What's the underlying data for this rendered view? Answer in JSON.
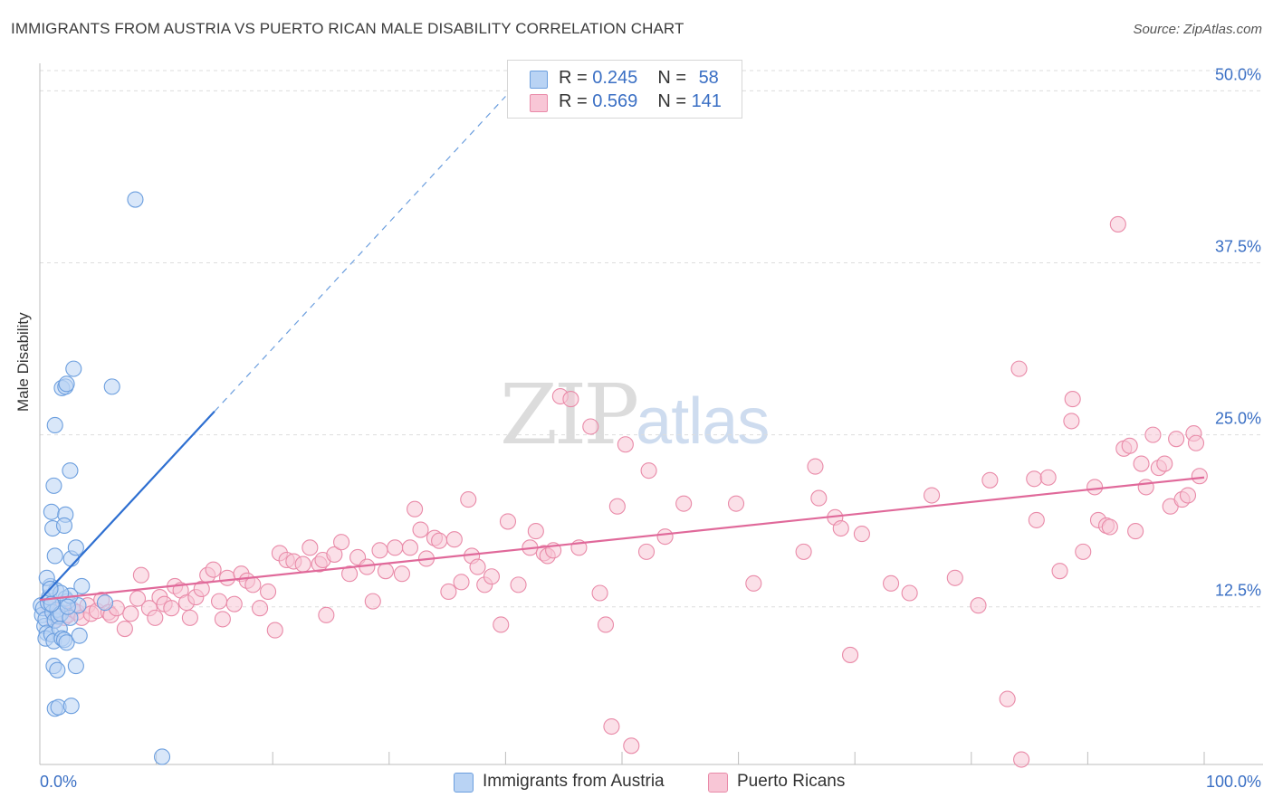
{
  "title": "IMMIGRANTS FROM AUSTRIA VS PUERTO RICAN MALE DISABILITY CORRELATION CHART",
  "source": "Source: ZipAtlas.com",
  "watermark": {
    "zip": "ZIP",
    "atlas": "atlas"
  },
  "colors": {
    "blue_fill": "#b9d3f4",
    "blue_stroke": "#6b9ede",
    "blue_line": "#2e6fd1",
    "pink_fill": "#f8c6d6",
    "pink_stroke": "#e98aa8",
    "pink_line": "#e0699a",
    "tick_label": "#3a6fc4",
    "grid": "#dddddd"
  },
  "legend_top": [
    {
      "r_label": "R = ",
      "r_value": "0.245",
      "n_label": "N = ",
      "n_value": "58",
      "color": "#b9d3f4"
    },
    {
      "r_label": "R = ",
      "r_value": "0.569",
      "n_label": "N = ",
      "n_value": "141",
      "color": "#f8c6d6"
    }
  ],
  "bottom_legend": [
    {
      "label": "Immigrants from Austria",
      "color": "#b9d3f4"
    },
    {
      "label": "Puerto Ricans",
      "color": "#f8c6d6"
    }
  ],
  "chart_data": {
    "type": "scatter",
    "xlabel": "",
    "ylabel": "Male Disability",
    "xlim": [
      0,
      100
    ],
    "ylim": [
      1.5,
      52
    ],
    "x_tick_labels": [
      "0.0%",
      "100.0%"
    ],
    "y_ticks": [
      12.5,
      25.0,
      37.5,
      50.0
    ],
    "y_tick_labels": [
      "12.5%",
      "25.0%",
      "37.5%",
      "50.0%"
    ],
    "grid": true,
    "series": [
      {
        "name": "Immigrants from Austria",
        "R": 0.245,
        "N": 58,
        "trend": {
          "x0": 0.0,
          "y0": 13.0,
          "x1": 15.0,
          "y1": 26.7,
          "dash_to_x": 40.0,
          "dash_to_y": 49.6
        },
        "points": [
          [
            0.1,
            12.6
          ],
          [
            0.2,
            11.9
          ],
          [
            0.3,
            12.4
          ],
          [
            0.4,
            11.1
          ],
          [
            0.5,
            11.6
          ],
          [
            0.6,
            10.6
          ],
          [
            0.5,
            10.2
          ],
          [
            0.7,
            12.8
          ],
          [
            0.8,
            13.2
          ],
          [
            0.9,
            14.0
          ],
          [
            0.6,
            14.6
          ],
          [
            1.0,
            10.5
          ],
          [
            1.2,
            10.0
          ],
          [
            1.1,
            12.1
          ],
          [
            1.3,
            11.5
          ],
          [
            1.4,
            13.7
          ],
          [
            1.5,
            12.3
          ],
          [
            1.6,
            11.8
          ],
          [
            1.7,
            10.9
          ],
          [
            1.8,
            12.0
          ],
          [
            1.9,
            10.2
          ],
          [
            2.1,
            10.1
          ],
          [
            2.2,
            13.1
          ],
          [
            2.3,
            9.9
          ],
          [
            2.4,
            12.9
          ],
          [
            2.6,
            11.7
          ],
          [
            1.2,
            8.2
          ],
          [
            1.5,
            7.9
          ],
          [
            3.1,
            8.2
          ],
          [
            1.3,
            5.1
          ],
          [
            1.6,
            5.2
          ],
          [
            2.7,
            5.3
          ],
          [
            1.1,
            18.2
          ],
          [
            1.0,
            19.4
          ],
          [
            2.2,
            19.2
          ],
          [
            2.1,
            18.4
          ],
          [
            2.7,
            16.0
          ],
          [
            3.1,
            16.8
          ],
          [
            1.3,
            16.2
          ],
          [
            3.3,
            12.6
          ],
          [
            3.6,
            14.0
          ],
          [
            3.4,
            10.4
          ],
          [
            2.6,
            13.3
          ],
          [
            1.2,
            21.3
          ],
          [
            2.6,
            22.4
          ],
          [
            1.3,
            25.7
          ],
          [
            1.9,
            28.4
          ],
          [
            2.2,
            28.5
          ],
          [
            2.3,
            28.7
          ],
          [
            2.9,
            29.8
          ],
          [
            6.2,
            28.5
          ],
          [
            8.2,
            42.1
          ],
          [
            5.6,
            12.8
          ],
          [
            2.4,
            12.5
          ],
          [
            1.8,
            13.5
          ],
          [
            0.9,
            13.8
          ],
          [
            10.5,
            1.6
          ],
          [
            1.0,
            12.7
          ]
        ]
      },
      {
        "name": "Puerto Ricans",
        "R": 0.569,
        "N": 141,
        "trend": {
          "x0": 0.0,
          "y0": 13.0,
          "x1": 100.0,
          "y1": 21.9
        },
        "points": [
          [
            0.8,
            12.4
          ],
          [
            1.2,
            11.5
          ],
          [
            1.7,
            12.2
          ],
          [
            2.1,
            11.7
          ],
          [
            2.4,
            11.9
          ],
          [
            2.8,
            12.3
          ],
          [
            3.2,
            12.1
          ],
          [
            3.6,
            11.7
          ],
          [
            4.1,
            12.6
          ],
          [
            4.4,
            12.0
          ],
          [
            4.9,
            12.2
          ],
          [
            5.3,
            13.0
          ],
          [
            5.9,
            12.1
          ],
          [
            6.1,
            11.9
          ],
          [
            6.6,
            12.4
          ],
          [
            7.3,
            10.9
          ],
          [
            7.8,
            12.0
          ],
          [
            8.4,
            13.1
          ],
          [
            8.7,
            14.8
          ],
          [
            9.4,
            12.4
          ],
          [
            9.9,
            11.7
          ],
          [
            10.3,
            13.2
          ],
          [
            10.7,
            12.7
          ],
          [
            11.3,
            12.4
          ],
          [
            11.6,
            14.0
          ],
          [
            12.1,
            13.7
          ],
          [
            12.6,
            12.8
          ],
          [
            12.9,
            11.7
          ],
          [
            13.4,
            13.2
          ],
          [
            13.9,
            13.8
          ],
          [
            14.4,
            14.8
          ],
          [
            14.9,
            15.2
          ],
          [
            15.4,
            12.9
          ],
          [
            15.7,
            11.6
          ],
          [
            16.1,
            14.6
          ],
          [
            16.7,
            12.7
          ],
          [
            17.3,
            14.9
          ],
          [
            17.8,
            14.4
          ],
          [
            18.3,
            14.1
          ],
          [
            18.9,
            12.4
          ],
          [
            19.6,
            13.6
          ],
          [
            20.2,
            10.8
          ],
          [
            20.6,
            16.4
          ],
          [
            21.2,
            15.9
          ],
          [
            21.8,
            15.8
          ],
          [
            22.6,
            15.6
          ],
          [
            23.2,
            16.8
          ],
          [
            24.0,
            15.6
          ],
          [
            24.6,
            11.9
          ],
          [
            24.3,
            15.9
          ],
          [
            25.3,
            16.3
          ],
          [
            25.9,
            17.2
          ],
          [
            26.6,
            14.9
          ],
          [
            27.3,
            16.1
          ],
          [
            28.1,
            15.4
          ],
          [
            28.6,
            12.9
          ],
          [
            29.2,
            16.6
          ],
          [
            29.7,
            15.1
          ],
          [
            30.5,
            16.8
          ],
          [
            31.1,
            14.9
          ],
          [
            31.8,
            16.8
          ],
          [
            32.2,
            19.6
          ],
          [
            32.7,
            18.1
          ],
          [
            33.2,
            16.0
          ],
          [
            33.9,
            17.5
          ],
          [
            34.3,
            17.3
          ],
          [
            35.1,
            13.6
          ],
          [
            35.6,
            17.4
          ],
          [
            36.2,
            14.3
          ],
          [
            36.8,
            20.3
          ],
          [
            37.1,
            16.2
          ],
          [
            37.6,
            15.4
          ],
          [
            38.2,
            14.1
          ],
          [
            38.8,
            14.7
          ],
          [
            39.6,
            11.2
          ],
          [
            40.2,
            18.7
          ],
          [
            41.1,
            14.1
          ],
          [
            42.1,
            16.8
          ],
          [
            42.6,
            18.0
          ],
          [
            43.3,
            16.4
          ],
          [
            43.6,
            16.2
          ],
          [
            44.1,
            16.6
          ],
          [
            44.7,
            27.8
          ],
          [
            45.6,
            27.6
          ],
          [
            46.3,
            16.8
          ],
          [
            47.3,
            25.6
          ],
          [
            48.1,
            13.5
          ],
          [
            48.6,
            11.2
          ],
          [
            49.1,
            3.8
          ],
          [
            49.6,
            19.8
          ],
          [
            50.3,
            24.3
          ],
          [
            50.8,
            2.4
          ],
          [
            52.1,
            16.5
          ],
          [
            52.3,
            22.4
          ],
          [
            53.7,
            17.6
          ],
          [
            55.3,
            20.0
          ],
          [
            59.8,
            20.0
          ],
          [
            61.3,
            14.2
          ],
          [
            65.6,
            16.5
          ],
          [
            66.6,
            22.7
          ],
          [
            66.9,
            20.4
          ],
          [
            68.3,
            19.0
          ],
          [
            68.8,
            18.2
          ],
          [
            69.6,
            9.0
          ],
          [
            70.6,
            17.8
          ],
          [
            73.1,
            14.2
          ],
          [
            74.7,
            13.5
          ],
          [
            76.6,
            20.6
          ],
          [
            78.6,
            14.6
          ],
          [
            80.6,
            12.6
          ],
          [
            81.6,
            21.7
          ],
          [
            83.1,
            5.8
          ],
          [
            84.1,
            29.8
          ],
          [
            84.3,
            1.4
          ],
          [
            85.4,
            21.8
          ],
          [
            85.6,
            18.8
          ],
          [
            86.6,
            21.9
          ],
          [
            87.6,
            15.1
          ],
          [
            88.6,
            26.0
          ],
          [
            88.7,
            27.6
          ],
          [
            89.6,
            16.5
          ],
          [
            90.6,
            21.2
          ],
          [
            90.9,
            18.8
          ],
          [
            91.6,
            18.4
          ],
          [
            91.9,
            18.3
          ],
          [
            92.6,
            40.3
          ],
          [
            93.1,
            24.0
          ],
          [
            93.6,
            24.2
          ],
          [
            94.1,
            18.0
          ],
          [
            94.6,
            22.9
          ],
          [
            95.0,
            21.2
          ],
          [
            95.6,
            25.0
          ],
          [
            96.1,
            22.6
          ],
          [
            96.6,
            22.9
          ],
          [
            97.1,
            19.8
          ],
          [
            97.6,
            24.7
          ],
          [
            98.1,
            20.3
          ],
          [
            98.6,
            20.6
          ],
          [
            99.1,
            25.1
          ],
          [
            99.3,
            24.4
          ],
          [
            99.6,
            22.0
          ]
        ]
      }
    ]
  }
}
